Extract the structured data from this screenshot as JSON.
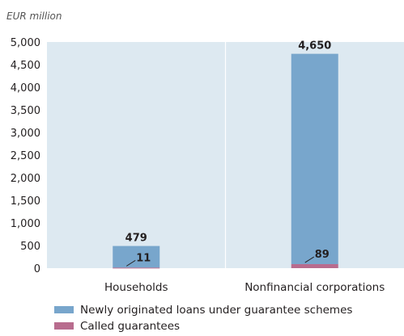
{
  "chart_data": {
    "type": "bar",
    "stacked": true,
    "unit_label": "EUR million",
    "categories": [
      "Households",
      "Nonfinancial corporations"
    ],
    "series": [
      {
        "name": "Newly originated loans under guarantee schemes",
        "values": [
          479,
          4650
        ],
        "color": "#78a6cc"
      },
      {
        "name": "Called guarantees",
        "values": [
          11,
          89
        ],
        "color": "#b86c8e"
      }
    ],
    "y_ticks": [
      "5,000",
      "4,500",
      "4,000",
      "3,500",
      "3,000",
      "2,500",
      "2,000",
      "1,500",
      "1,000",
      "500",
      "0"
    ],
    "ylim": [
      0,
      5000
    ],
    "grid": false,
    "plot_background": "#dde9f1",
    "legend_position": "bottom-left",
    "data_labels": [
      "479",
      "4,650",
      "11",
      "89"
    ]
  }
}
